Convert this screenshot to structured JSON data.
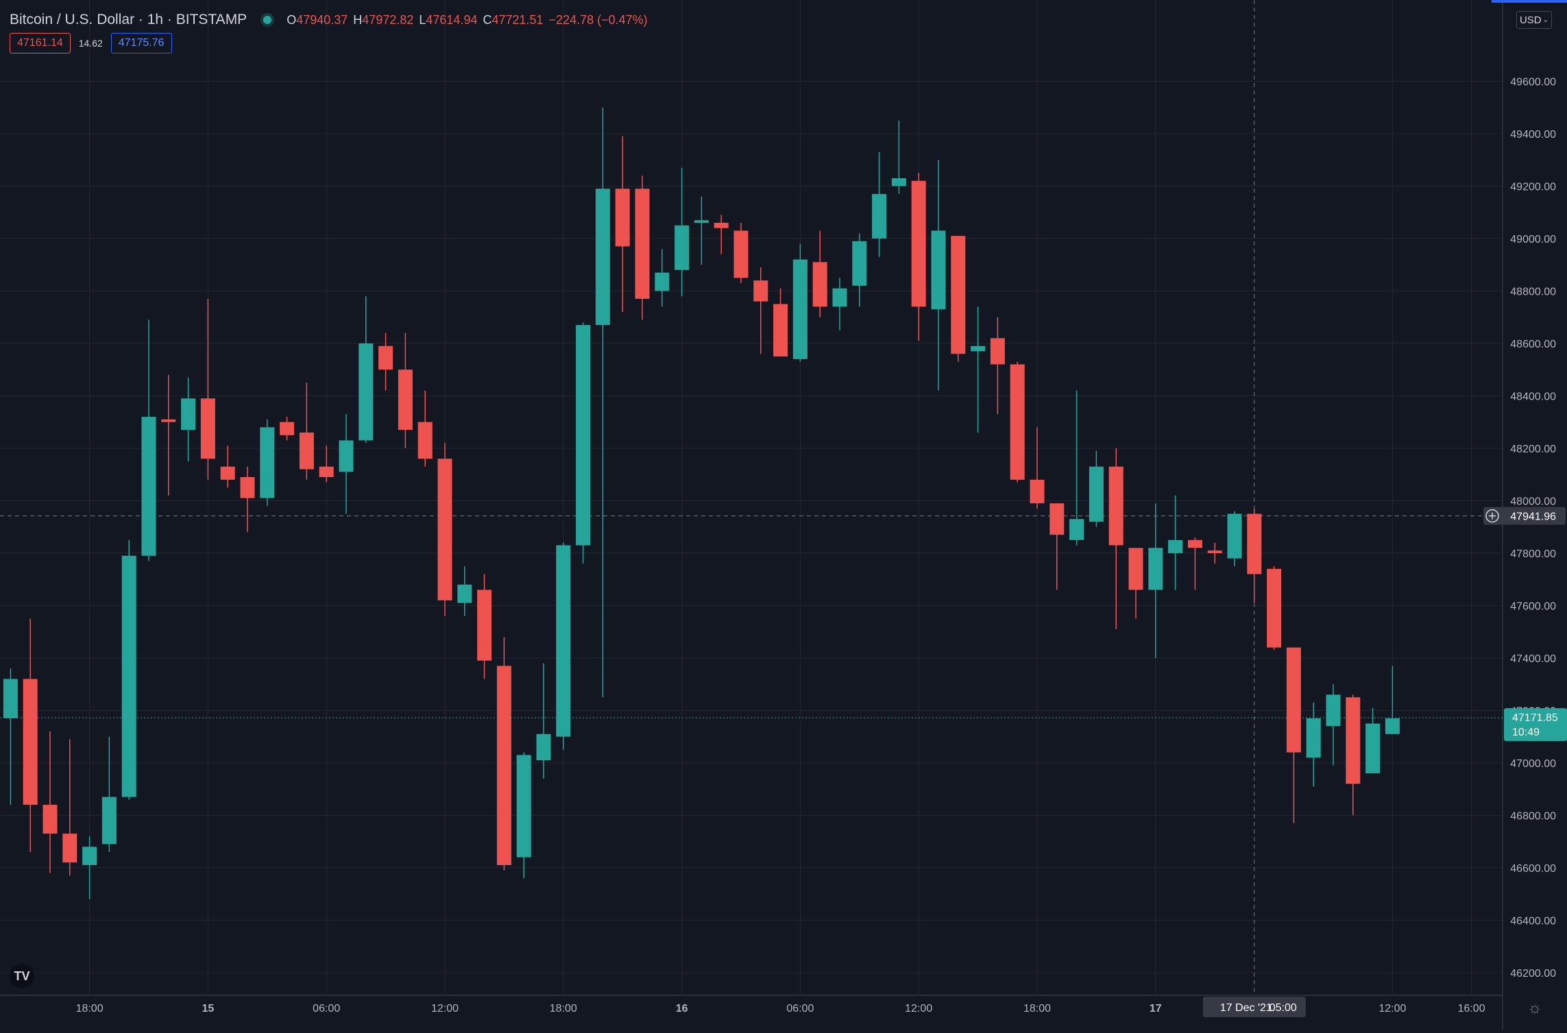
{
  "header": {
    "symbol_title": "Bitcoin / U.S. Dollar · 1h · BITSTAMP",
    "ohlc": {
      "o_label": "O",
      "o": "47940.37",
      "h_label": "H",
      "h": "47972.82",
      "l_label": "L",
      "l": "47614.94",
      "c_label": "C",
      "c": "47721.51",
      "change": "−224.78 (−0.47%)"
    },
    "bid": "47161.14",
    "spread": "14.62",
    "ask": "47175.76",
    "currency_button": "USD"
  },
  "colors": {
    "background": "#131722",
    "up": "#26a69a",
    "down": "#ef5350",
    "grid": "#242733",
    "text": "#d1d4dc"
  },
  "crosshair": {
    "price_label": "47941.96",
    "time_label": "17 Dec '21",
    "time_label_hour": "05:00"
  },
  "last_price": {
    "price": "47171.85",
    "countdown": "10:49"
  },
  "chart_data": {
    "type": "candlestick",
    "title": "Bitcoin / U.S. Dollar",
    "interval": "1h",
    "exchange": "BITSTAMP",
    "ylim": [
      46150,
      49800
    ],
    "y_ticks": [
      "46200.00",
      "46400.00",
      "46600.00",
      "46800.00",
      "47000.00",
      "47200.00",
      "47400.00",
      "47600.00",
      "47800.00",
      "48000.00",
      "48200.00",
      "48400.00",
      "48600.00",
      "48800.00",
      "49000.00",
      "49200.00",
      "49400.00",
      "49600.00"
    ],
    "x_ticks": [
      {
        "label": "18:00",
        "index": 4
      },
      {
        "label": "15",
        "index": 10,
        "bold": true
      },
      {
        "label": "06:00",
        "index": 16
      },
      {
        "label": "12:00",
        "index": 22
      },
      {
        "label": "18:00",
        "index": 28
      },
      {
        "label": "16",
        "index": 34,
        "bold": true
      },
      {
        "label": "06:00",
        "index": 40
      },
      {
        "label": "12:00",
        "index": 46
      },
      {
        "label": "18:00",
        "index": 52
      },
      {
        "label": "17",
        "index": 58,
        "bold": true
      },
      {
        "label": "12:00",
        "index": 70
      },
      {
        "label": "16:00",
        "index": 74
      }
    ],
    "grid": true,
    "candles": [
      {
        "o": 47170,
        "h": 47360,
        "l": 46840,
        "c": 47320
      },
      {
        "o": 47320,
        "h": 47550,
        "l": 46660,
        "c": 46840
      },
      {
        "o": 46840,
        "h": 47120,
        "l": 46580,
        "c": 46730
      },
      {
        "o": 46730,
        "h": 47090,
        "l": 46570,
        "c": 46620
      },
      {
        "o": 46610,
        "h": 46720,
        "l": 46480,
        "c": 46680
      },
      {
        "o": 46690,
        "h": 47100,
        "l": 46660,
        "c": 46870
      },
      {
        "o": 46870,
        "h": 47850,
        "l": 46860,
        "c": 47790
      },
      {
        "o": 47790,
        "h": 48690,
        "l": 47770,
        "c": 48320
      },
      {
        "o": 48310,
        "h": 48480,
        "l": 48020,
        "c": 48300
      },
      {
        "o": 48270,
        "h": 48470,
        "l": 48150,
        "c": 48390
      },
      {
        "o": 48390,
        "h": 48770,
        "l": 48080,
        "c": 48160
      },
      {
        "o": 48130,
        "h": 48210,
        "l": 48050,
        "c": 48080
      },
      {
        "o": 48090,
        "h": 48130,
        "l": 47880,
        "c": 48010
      },
      {
        "o": 48010,
        "h": 48310,
        "l": 47980,
        "c": 48280
      },
      {
        "o": 48300,
        "h": 48320,
        "l": 48230,
        "c": 48250
      },
      {
        "o": 48260,
        "h": 48450,
        "l": 48080,
        "c": 48120
      },
      {
        "o": 48130,
        "h": 48210,
        "l": 48070,
        "c": 48090
      },
      {
        "o": 48110,
        "h": 48330,
        "l": 47950,
        "c": 48230
      },
      {
        "o": 48230,
        "h": 48780,
        "l": 48220,
        "c": 48600
      },
      {
        "o": 48590,
        "h": 48640,
        "l": 48420,
        "c": 48500
      },
      {
        "o": 48500,
        "h": 48640,
        "l": 48200,
        "c": 48270
      },
      {
        "o": 48300,
        "h": 48420,
        "l": 48130,
        "c": 48160
      },
      {
        "o": 48160,
        "h": 48220,
        "l": 47560,
        "c": 47620
      },
      {
        "o": 47610,
        "h": 47750,
        "l": 47560,
        "c": 47680
      },
      {
        "o": 47660,
        "h": 47720,
        "l": 47320,
        "c": 47390
      },
      {
        "o": 47370,
        "h": 47480,
        "l": 46590,
        "c": 46610
      },
      {
        "o": 46640,
        "h": 47040,
        "l": 46560,
        "c": 47030
      },
      {
        "o": 47010,
        "h": 47380,
        "l": 46940,
        "c": 47110
      },
      {
        "o": 47100,
        "h": 47840,
        "l": 47050,
        "c": 47830
      },
      {
        "o": 47830,
        "h": 48680,
        "l": 47760,
        "c": 48670
      },
      {
        "o": 48670,
        "h": 49500,
        "l": 47250,
        "c": 49190
      },
      {
        "o": 49190,
        "h": 49390,
        "l": 48720,
        "c": 48970
      },
      {
        "o": 49190,
        "h": 49240,
        "l": 48690,
        "c": 48770
      },
      {
        "o": 48800,
        "h": 48960,
        "l": 48740,
        "c": 48870
      },
      {
        "o": 48880,
        "h": 49270,
        "l": 48780,
        "c": 49050
      },
      {
        "o": 49060,
        "h": 49160,
        "l": 48900,
        "c": 49070
      },
      {
        "o": 49060,
        "h": 49090,
        "l": 48940,
        "c": 49040
      },
      {
        "o": 49030,
        "h": 49060,
        "l": 48830,
        "c": 48850
      },
      {
        "o": 48840,
        "h": 48890,
        "l": 48560,
        "c": 48760
      },
      {
        "o": 48750,
        "h": 48810,
        "l": 48550,
        "c": 48550
      },
      {
        "o": 48540,
        "h": 48980,
        "l": 48530,
        "c": 48920
      },
      {
        "o": 48910,
        "h": 49030,
        "l": 48700,
        "c": 48740
      },
      {
        "o": 48740,
        "h": 48850,
        "l": 48650,
        "c": 48810
      },
      {
        "o": 48820,
        "h": 49020,
        "l": 48740,
        "c": 48990
      },
      {
        "o": 49000,
        "h": 49330,
        "l": 48930,
        "c": 49170
      },
      {
        "o": 49200,
        "h": 49450,
        "l": 49170,
        "c": 49230
      },
      {
        "o": 49220,
        "h": 49250,
        "l": 48610,
        "c": 48740
      },
      {
        "o": 48730,
        "h": 49300,
        "l": 48420,
        "c": 49030
      },
      {
        "o": 49010,
        "h": 49000,
        "l": 48530,
        "c": 48560
      },
      {
        "o": 48570,
        "h": 48740,
        "l": 48260,
        "c": 48590
      },
      {
        "o": 48620,
        "h": 48700,
        "l": 48330,
        "c": 48520
      },
      {
        "o": 48520,
        "h": 48530,
        "l": 48070,
        "c": 48080
      },
      {
        "o": 48080,
        "h": 48280,
        "l": 47970,
        "c": 47990
      },
      {
        "o": 47990,
        "h": 47990,
        "l": 47660,
        "c": 47870
      },
      {
        "o": 47850,
        "h": 48420,
        "l": 47830,
        "c": 47930
      },
      {
        "o": 47920,
        "h": 48190,
        "l": 47900,
        "c": 48130
      },
      {
        "o": 48130,
        "h": 48200,
        "l": 47510,
        "c": 47830
      },
      {
        "o": 47820,
        "h": 47810,
        "l": 47550,
        "c": 47660
      },
      {
        "o": 47660,
        "h": 47990,
        "l": 47400,
        "c": 47820
      },
      {
        "o": 47800,
        "h": 48020,
        "l": 47660,
        "c": 47850
      },
      {
        "o": 47850,
        "h": 47860,
        "l": 47660,
        "c": 47820
      },
      {
        "o": 47810,
        "h": 47840,
        "l": 47760,
        "c": 47800
      },
      {
        "o": 47780,
        "h": 47960,
        "l": 47750,
        "c": 47950
      },
      {
        "o": 47950,
        "h": 47970,
        "l": 47610,
        "c": 47720
      },
      {
        "o": 47740,
        "h": 47750,
        "l": 47430,
        "c": 47440
      },
      {
        "o": 47440,
        "h": 47440,
        "l": 46770,
        "c": 47040
      },
      {
        "o": 47020,
        "h": 47230,
        "l": 46910,
        "c": 47170
      },
      {
        "o": 47140,
        "h": 47300,
        "l": 46990,
        "c": 47260
      },
      {
        "o": 47250,
        "h": 47260,
        "l": 46800,
        "c": 46920
      },
      {
        "o": 46960,
        "h": 47210,
        "l": 46960,
        "c": 47150
      },
      {
        "o": 47110,
        "h": 47370,
        "l": 47110,
        "c": 47170
      }
    ]
  }
}
